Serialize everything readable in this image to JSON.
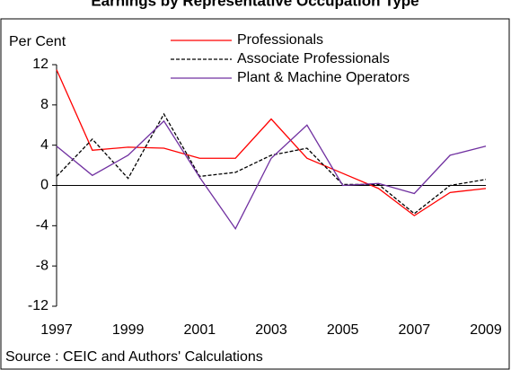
{
  "chart_data": {
    "type": "line",
    "title": "Earnings by Representative Occupation Type",
    "y_label": "Per Cent",
    "source": "Source : CEIC and Authors' Calculations",
    "x": [
      1997,
      1998,
      1999,
      2000,
      2001,
      2002,
      2003,
      2004,
      2005,
      2006,
      2007,
      2008,
      2009
    ],
    "xlim": [
      1997,
      2009
    ],
    "xticks": [
      1997,
      1999,
      2001,
      2003,
      2005,
      2007,
      2009
    ],
    "ylim": [
      -12,
      12
    ],
    "yticks": [
      -12,
      -8,
      -4,
      0,
      4,
      8,
      12
    ],
    "series": [
      {
        "name": "Professionals",
        "color": "#ff0000",
        "dash": "solid",
        "values": [
          11.5,
          3.5,
          3.8,
          3.7,
          2.7,
          2.7,
          6.6,
          2.7,
          1.2,
          -0.3,
          -3.0,
          -0.7,
          -0.3
        ]
      },
      {
        "name": "Associate Professionals",
        "color": "#000000",
        "dash": "dashed",
        "values": [
          0.9,
          4.6,
          0.7,
          7.1,
          0.9,
          1.3,
          3.0,
          3.7,
          0.1,
          0.1,
          -2.8,
          0.0,
          0.6
        ]
      },
      {
        "name": "Plant & Machine Operators",
        "color": "#7030a0",
        "dash": "solid",
        "values": [
          3.9,
          1.0,
          3.0,
          6.4,
          0.8,
          -4.3,
          2.7,
          6.0,
          0.0,
          0.2,
          -0.8,
          3.0,
          3.9
        ]
      }
    ]
  }
}
